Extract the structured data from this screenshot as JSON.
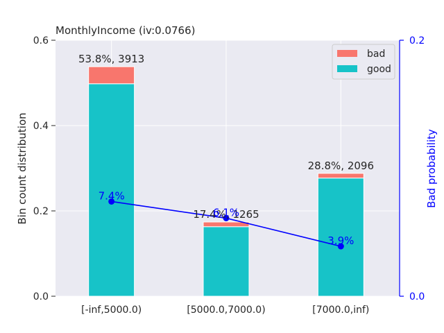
{
  "chart_data": {
    "type": "bar",
    "title": "MonthlyIncome  (iv:0.0766)",
    "ylabel": "Bin count distribution",
    "y2label": "Bad probability",
    "ylim": [
      0,
      0.6
    ],
    "y2lim": [
      0,
      0.2
    ],
    "yticks": [
      "0.0",
      "0.2",
      "0.4",
      "0.6"
    ],
    "y2ticks": [
      "0.0",
      "0.2"
    ],
    "categories": [
      "[-inf,5000.0)",
      "[5000.0,7000.0)",
      "[7000.0,inf)"
    ],
    "stacked": true,
    "series": [
      {
        "name": "good",
        "color": "#17c3c8",
        "values": [
          0.498,
          0.163,
          0.277
        ]
      },
      {
        "name": "bad",
        "color": "#f8766d",
        "values": [
          0.04,
          0.011,
          0.011
        ]
      }
    ],
    "bar_labels": [
      "53.8%, 3913",
      "17.4%, 1265",
      "28.8%, 2096"
    ],
    "bad_probability": {
      "color": "#0000ff",
      "values": [
        0.074,
        0.061,
        0.039
      ],
      "labels": [
        "7.4%",
        "6.1%",
        "3.9%"
      ]
    },
    "legend": {
      "placement": "top-right",
      "entries": [
        "bad",
        "good"
      ]
    },
    "grid": true,
    "background": "#eaeaf2"
  }
}
